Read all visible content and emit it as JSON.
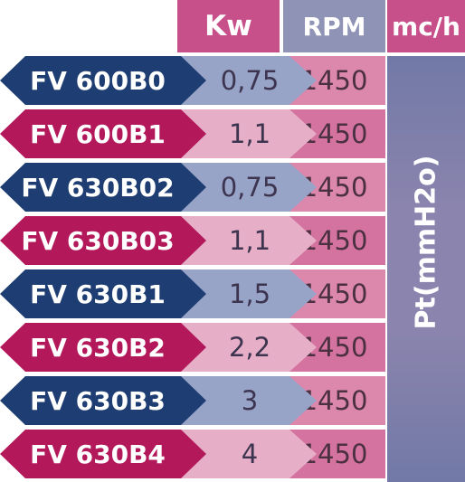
{
  "header": {
    "kw": "Kw",
    "rpm": "RPM",
    "mch": "mc/h"
  },
  "side_label": "Pt(mmH2o)",
  "colors": {
    "navy": "#1e3d72",
    "magenta": "#b2185a",
    "header_pink": "#c8508a",
    "header_lavender": "#8f93b6",
    "side_column": "#7279a6"
  },
  "rows": [
    {
      "model": "FV 600B0",
      "kw": "0,75",
      "rpm": "1450",
      "color": "navy"
    },
    {
      "model": "FV 600B1",
      "kw": "1,1",
      "rpm": "1450",
      "color": "magenta"
    },
    {
      "model": "FV 630B02",
      "kw": "0,75",
      "rpm": "1450",
      "color": "navy"
    },
    {
      "model": "FV 630B03",
      "kw": "1,1",
      "rpm": "1450",
      "color": "magenta"
    },
    {
      "model": "FV 630B1",
      "kw": "1,5",
      "rpm": "1450",
      "color": "navy"
    },
    {
      "model": "FV 630B2",
      "kw": "2,2",
      "rpm": "1450",
      "color": "magenta"
    },
    {
      "model": "FV 630B3",
      "kw": "3",
      "rpm": "1450",
      "color": "navy"
    },
    {
      "model": "FV 630B4",
      "kw": "4",
      "rpm": "1450",
      "color": "magenta"
    }
  ]
}
